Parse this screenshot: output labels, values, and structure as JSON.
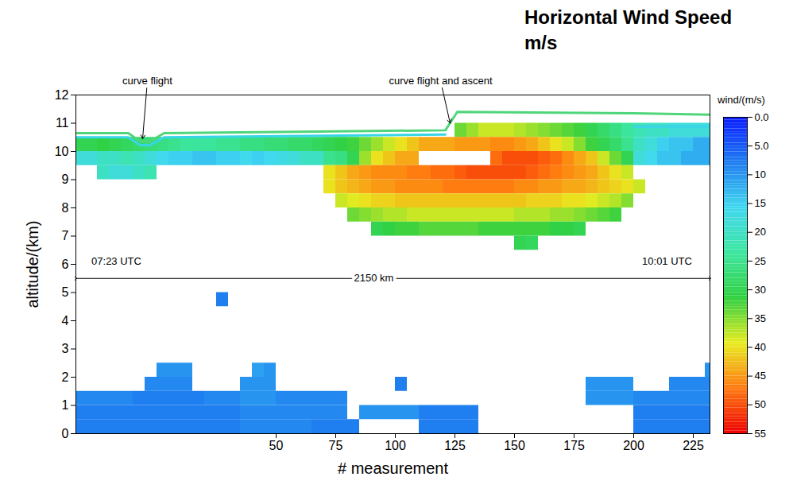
{
  "chart_data": {
    "type": "heatmap",
    "title": "Horizontal Wind Speed m/s",
    "x_label": "# measurement",
    "y_label": "altitude/(km)",
    "xlim": [
      -34,
      232
    ],
    "xticks": [
      50,
      75,
      100,
      125,
      150,
      175,
      200,
      225
    ],
    "ylim": [
      0,
      12
    ],
    "yticks": [
      0,
      1,
      2,
      3,
      4,
      5,
      6,
      7,
      8,
      9,
      10,
      11,
      12
    ],
    "heatmap": {
      "x_edges": [
        -35,
        -30,
        -25,
        -20,
        -15,
        -10,
        -5,
        0,
        5,
        10,
        15,
        20,
        25,
        30,
        35,
        40,
        45,
        50,
        55,
        60,
        65,
        70,
        75,
        80,
        85,
        90,
        95,
        100,
        105,
        110,
        115,
        120,
        125,
        130,
        135,
        140,
        145,
        150,
        155,
        160,
        165,
        170,
        175,
        180,
        185,
        190,
        195,
        200,
        205,
        210,
        215,
        220,
        225,
        230,
        235
      ],
      "rows": [
        {
          "y": [
            10.5,
            11
          ],
          "values": [
            null,
            null,
            null,
            null,
            null,
            null,
            null,
            null,
            null,
            null,
            null,
            null,
            null,
            null,
            null,
            null,
            null,
            null,
            null,
            null,
            null,
            null,
            null,
            null,
            null,
            null,
            null,
            null,
            null,
            null,
            null,
            null,
            34,
            36,
            38,
            38,
            38,
            37,
            36,
            35,
            34,
            33,
            32,
            30,
            28,
            26,
            24,
            22,
            20,
            20,
            18,
            18,
            18,
            18
          ]
        },
        {
          "y": [
            10,
            10.5
          ],
          "values": [
            30,
            30,
            31,
            30,
            29,
            28,
            27,
            26,
            25,
            24,
            24,
            24,
            25,
            25,
            26,
            26,
            27,
            27,
            28,
            28,
            29,
            30,
            31,
            32,
            34,
            36,
            38,
            40,
            42,
            44,
            44,
            44,
            45,
            45,
            45,
            46,
            46,
            45,
            44,
            42,
            40,
            38,
            35,
            32,
            30,
            28,
            25,
            20,
            18,
            15,
            14,
            14,
            12,
            12
          ]
        },
        {
          "y": [
            9.5,
            10
          ],
          "values": [
            18,
            18,
            20,
            20,
            22,
            20,
            18,
            16,
            15,
            15,
            14,
            14,
            15,
            15,
            16,
            15,
            16,
            17,
            18,
            20,
            20,
            25,
            26,
            30,
            36,
            40,
            42,
            44,
            44,
            null,
            null,
            null,
            null,
            null,
            null,
            48,
            50,
            50,
            50,
            49,
            48,
            46,
            44,
            42,
            38,
            34,
            30,
            18,
            16,
            14,
            14,
            12,
            12,
            12
          ]
        },
        {
          "y": [
            9,
            9.5
          ],
          "values": [
            null,
            null,
            20,
            18,
            18,
            20,
            22,
            null,
            null,
            null,
            null,
            null,
            null,
            null,
            null,
            null,
            null,
            null,
            null,
            null,
            null,
            40,
            42,
            44,
            45,
            46,
            46,
            46,
            47,
            47,
            48,
            48,
            49,
            50,
            50,
            50,
            50,
            50,
            49,
            48,
            47,
            46,
            45,
            44,
            42,
            40,
            38,
            null,
            null,
            null,
            null,
            null,
            null,
            null
          ]
        },
        {
          "y": [
            8.5,
            9
          ],
          "values": [
            null,
            null,
            null,
            null,
            null,
            null,
            null,
            null,
            null,
            null,
            null,
            null,
            null,
            null,
            null,
            null,
            null,
            null,
            null,
            null,
            null,
            40,
            42,
            43,
            44,
            45,
            45,
            46,
            46,
            46,
            46,
            47,
            47,
            47,
            47,
            47,
            47,
            46,
            46,
            45,
            45,
            44,
            44,
            43,
            42,
            41,
            40,
            38,
            null,
            null,
            null,
            null,
            null,
            null
          ]
        },
        {
          "y": [
            8,
            8.5
          ],
          "values": [
            null,
            null,
            null,
            null,
            null,
            null,
            null,
            null,
            null,
            null,
            null,
            null,
            null,
            null,
            null,
            null,
            null,
            null,
            null,
            null,
            null,
            null,
            38,
            39,
            40,
            41,
            41,
            42,
            42,
            42,
            42,
            42,
            42,
            42,
            42,
            42,
            42,
            42,
            41,
            41,
            41,
            40,
            40,
            39,
            38,
            37,
            35,
            null,
            null,
            null,
            null,
            null,
            null,
            null
          ]
        },
        {
          "y": [
            7.5,
            8
          ],
          "values": [
            null,
            null,
            null,
            null,
            null,
            null,
            null,
            null,
            null,
            null,
            null,
            null,
            null,
            null,
            null,
            null,
            null,
            null,
            null,
            null,
            null,
            null,
            null,
            34,
            35,
            36,
            37,
            37,
            38,
            38,
            38,
            38,
            38,
            38,
            38,
            38,
            38,
            37,
            37,
            37,
            36,
            36,
            35,
            34,
            33,
            32,
            null,
            null,
            null,
            null,
            null,
            null,
            null,
            null
          ]
        },
        {
          "y": [
            7,
            7.5
          ],
          "values": [
            null,
            null,
            null,
            null,
            null,
            null,
            null,
            null,
            null,
            null,
            null,
            null,
            null,
            null,
            null,
            null,
            null,
            null,
            null,
            null,
            null,
            null,
            null,
            null,
            null,
            30,
            31,
            32,
            32,
            33,
            33,
            33,
            33,
            33,
            32,
            32,
            32,
            32,
            32,
            32,
            31,
            31,
            30,
            null,
            null,
            null,
            null,
            null,
            null,
            null,
            null,
            null,
            null,
            null
          ]
        },
        {
          "y": [
            6.5,
            7
          ],
          "values": [
            null,
            null,
            null,
            null,
            null,
            null,
            null,
            null,
            null,
            null,
            null,
            null,
            null,
            null,
            null,
            null,
            null,
            null,
            null,
            null,
            null,
            null,
            null,
            null,
            null,
            null,
            null,
            null,
            null,
            null,
            null,
            null,
            null,
            null,
            null,
            null,
            null,
            30,
            29,
            null,
            null,
            null,
            null,
            null,
            null,
            null,
            null,
            null,
            null,
            null,
            null,
            null,
            null,
            null
          ]
        },
        {
          "y": [
            4.5,
            5
          ],
          "values": [
            null,
            null,
            null,
            null,
            null,
            null,
            null,
            null,
            null,
            null,
            null,
            null,
            8,
            null,
            null,
            null,
            null,
            null,
            null,
            null,
            null,
            null,
            null,
            null,
            null,
            null,
            null,
            null,
            null,
            null,
            null,
            null,
            null,
            null,
            null,
            null,
            null,
            null,
            null,
            null,
            null,
            null,
            null,
            null,
            null,
            null,
            null,
            null,
            null,
            null,
            null,
            null,
            null,
            null
          ]
        },
        {
          "y": [
            2,
            2.5
          ],
          "values": [
            null,
            null,
            null,
            null,
            null,
            null,
            null,
            10,
            10,
            10,
            null,
            null,
            null,
            null,
            null,
            11,
            10,
            null,
            null,
            null,
            null,
            null,
            null,
            null,
            null,
            null,
            null,
            null,
            null,
            null,
            null,
            null,
            null,
            null,
            null,
            null,
            null,
            null,
            null,
            null,
            null,
            null,
            null,
            null,
            null,
            null,
            null,
            null,
            null,
            null,
            null,
            null,
            null,
            10
          ]
        },
        {
          "y": [
            1.5,
            2
          ],
          "values": [
            null,
            null,
            null,
            null,
            null,
            null,
            9,
            9,
            9,
            9,
            null,
            null,
            null,
            null,
            10,
            10,
            10,
            null,
            null,
            null,
            null,
            null,
            null,
            null,
            null,
            null,
            null,
            8,
            null,
            null,
            null,
            null,
            null,
            null,
            null,
            null,
            null,
            null,
            null,
            null,
            null,
            null,
            null,
            10,
            10,
            10,
            10,
            null,
            null,
            null,
            9,
            9,
            9,
            9
          ]
        },
        {
          "y": [
            1,
            1.5
          ],
          "values": [
            9,
            9,
            9,
            9,
            9,
            8,
            8,
            8,
            8,
            8,
            8,
            9,
            9,
            9,
            10,
            10,
            10,
            9,
            9,
            9,
            9,
            9,
            9,
            null,
            null,
            null,
            null,
            null,
            null,
            null,
            null,
            null,
            null,
            null,
            null,
            null,
            null,
            null,
            null,
            null,
            null,
            null,
            null,
            10,
            10,
            10,
            10,
            9,
            9,
            9,
            9,
            9,
            9,
            9
          ]
        },
        {
          "y": [
            0.5,
            1
          ],
          "values": [
            8,
            8,
            8,
            8,
            8,
            8,
            8,
            8,
            8,
            8,
            8,
            8,
            8,
            8,
            9,
            9,
            9,
            9,
            9,
            9,
            9,
            9,
            9,
            null,
            10,
            10,
            10,
            10,
            10,
            8,
            8,
            8,
            8,
            8,
            null,
            null,
            null,
            null,
            null,
            null,
            null,
            null,
            null,
            null,
            null,
            null,
            null,
            8,
            8,
            8,
            8,
            8,
            8,
            8
          ]
        },
        {
          "y": [
            0,
            0.5
          ],
          "values": [
            8,
            8,
            8,
            8,
            8,
            8,
            8,
            8,
            8,
            8,
            8,
            8,
            8,
            8,
            9,
            9,
            9,
            9,
            9,
            9,
            8,
            8,
            8,
            8,
            null,
            null,
            null,
            null,
            null,
            8,
            8,
            8,
            8,
            8,
            null,
            null,
            null,
            null,
            null,
            null,
            null,
            null,
            null,
            null,
            null,
            null,
            null,
            8,
            8,
            8,
            8,
            8,
            8,
            8
          ]
        }
      ]
    },
    "colorbar": {
      "label": "wind/(m/s)",
      "range": [
        0,
        55
      ],
      "ticks": [
        {
          "value": 0,
          "label": "0.0"
        },
        {
          "value": 5,
          "label": "5.0"
        },
        10,
        15,
        20,
        25,
        30,
        35,
        40,
        45,
        50,
        55
      ],
      "colors": [
        "#0a1cff",
        "#1e7cf0",
        "#40d8f0",
        "#3ce6a0",
        "#30d040",
        "#e8ec20",
        "#ff7a10",
        "#ee0000"
      ]
    },
    "tracks": [
      {
        "color": "#4fd67a",
        "x": [
          -34,
          -12,
          -7,
          -3,
          3,
          60,
          121,
          126,
          200,
          232
        ],
        "y": [
          10.65,
          10.65,
          10.35,
          10.35,
          10.65,
          10.7,
          10.75,
          11.4,
          11.35,
          11.3
        ]
      },
      {
        "color": "#38d5e8",
        "x": [
          -34,
          -12,
          -7,
          -3,
          3,
          121,
          150,
          200,
          232
        ],
        "y": [
          10.5,
          10.5,
          10.22,
          10.22,
          10.5,
          10.6,
          null,
          10.88,
          10.88
        ]
      }
    ],
    "annotations": [
      {
        "text": "curve flight",
        "x": -4,
        "y": 12.5,
        "arrow_to": [
          -6,
          10.45
        ]
      },
      {
        "text": "curve flight and ascent",
        "x": 119,
        "y": 12.5,
        "arrow_to": [
          123,
          11.0
        ]
      },
      {
        "text": "07:23 UTC",
        "x": -17,
        "y": 6.1
      },
      {
        "text": "10:01 UTC",
        "x": 214,
        "y": 6.1
      },
      {
        "text": "2150 km",
        "x": 91,
        "y": 5.5,
        "span": [
          -34,
          232
        ]
      }
    ]
  }
}
